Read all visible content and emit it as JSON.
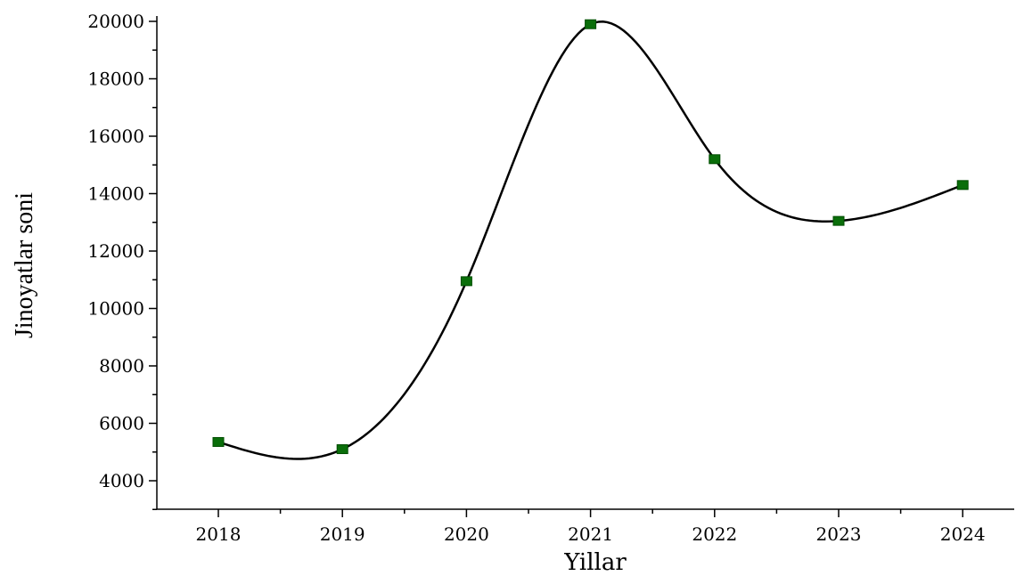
{
  "chart_data": {
    "type": "line",
    "xlabel": "Yillar",
    "ylabel": "Jinoyatlar soni",
    "categories": [
      "2018",
      "2019",
      "2020",
      "2021",
      "2022",
      "2023",
      "2024"
    ],
    "series": [
      {
        "values": [
          5350,
          5100,
          10950,
          19900,
          15200,
          13050,
          14300
        ]
      }
    ],
    "ylim": [
      3000,
      20000
    ],
    "yticks": [
      "4000",
      "6000",
      "8000",
      "10000",
      "12000",
      "14000",
      "16000",
      "18000",
      "20000"
    ],
    "ytick_values": [
      4000,
      6000,
      8000,
      10000,
      12000,
      14000,
      16000,
      18000,
      20000
    ],
    "smooth_line": true,
    "marker": "square",
    "colors": {
      "line": "#000000",
      "marker": "#0a6e0a",
      "marker_edge": "#004d00"
    },
    "grid": false,
    "legend": "none"
  }
}
